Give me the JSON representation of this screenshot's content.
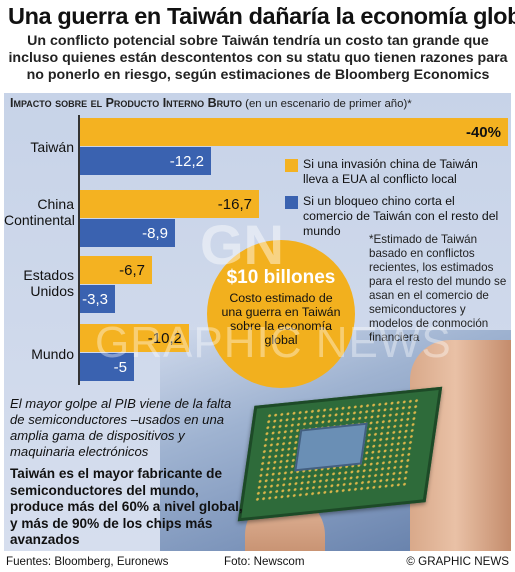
{
  "header": {
    "title": "Una guerra en Taiwán dañaría la economía global",
    "subtitle": "Un conflicto potencial sobre Taiwán tendría un costo tan grande que incluso quienes están descontentos con su statu quo tienen razones para no ponerlo en riesgo, según estimaciones de Bloomberg Economics"
  },
  "chart_header": {
    "caps": "Impacto sobre el Producto Interno Bruto",
    "rest": " (en un escenario de primer año)*"
  },
  "colors": {
    "invasion": "#f4b221",
    "blockade": "#3a62b0",
    "panel": "#cdd6ea"
  },
  "legend": {
    "invasion": "Si una invasión china de Taiwán lleva a EUA al conflicto local",
    "blockade": "Si un bloqueo chino corta el comercio de Taiwán con el resto del mundo"
  },
  "note": "*Estimado de Taiwán basado en conflictos recientes, los estimados para el resto del mundo se asan en el comercio de semiconductores y modelos de conmoción financiera",
  "circle": {
    "amount": "$10 billones",
    "description": "Costo estimado de una guerra en Taiwán sobre la economía global"
  },
  "semis_text": "El mayor golpe al PIB viene de la falta de semiconductores –usados en una amplia gama de dispositivos y maquinaria electrónicos",
  "taiwan_fact": "Taiwán es el mayor fabricante de semiconductores del mundo, produce más del 60% a nivel global, y más de 90% de los chips más avanzados",
  "footer": {
    "sources": "Fuentes: Bloomberg, Euronews",
    "photo": "Foto: Newscom",
    "copyright": "© GRAPHIC NEWS"
  },
  "watermark": "GRAPHIC NEWS",
  "watermark_logo": "GN",
  "chart_data": {
    "type": "bar",
    "orientation": "horizontal",
    "categories": [
      "Taiwán",
      "China Continental",
      "Estados Unidos",
      "Mundo"
    ],
    "category_lines": [
      [
        "Taiwán"
      ],
      [
        "China",
        "Continental"
      ],
      [
        "Estados",
        "Unidos"
      ],
      [
        "Mundo"
      ]
    ],
    "series": [
      {
        "name": "Si una invasión china de Taiwán lleva a EUA al conflicto local",
        "values": [
          -40,
          -16.7,
          -6.7,
          -10.2
        ],
        "labels": [
          "-40%",
          "-16,7",
          "-6,7",
          "-10,2"
        ]
      },
      {
        "name": "Si un bloqueo chino corta el comercio de Taiwán con el resto del mundo",
        "values": [
          -12.2,
          -8.9,
          -3.3,
          -5
        ],
        "labels": [
          "-12,2",
          "-8,9",
          "-3,3",
          "-5"
        ]
      }
    ],
    "xlim": [
      -40,
      0
    ],
    "grid": false,
    "legend_position": "right"
  }
}
